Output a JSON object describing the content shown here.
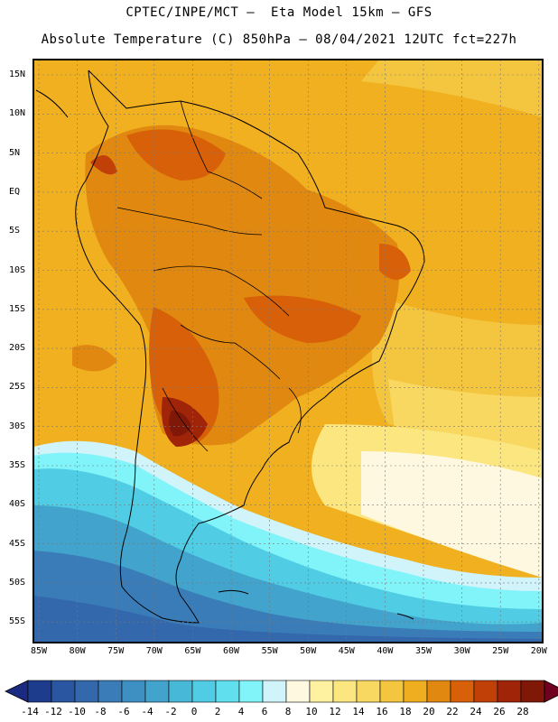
{
  "header": {
    "line1": "CPTEC/INPE/MCT –  Eta Model 15km – GFS",
    "line2": "Absolute Temperature (C) 850hPa – 08/04/2021 12UTC fct=227h"
  },
  "map": {
    "latitude_labels": [
      "15N",
      "10N",
      "5N",
      "EQ",
      "5S",
      "10S",
      "15S",
      "20S",
      "25S",
      "30S",
      "35S",
      "40S",
      "45S",
      "50S",
      "55S"
    ],
    "longitude_labels": [
      "85W",
      "80W",
      "75W",
      "70W",
      "65W",
      "60W",
      "55W",
      "50W",
      "45W",
      "40W",
      "35W",
      "30W",
      "25W",
      "20W"
    ],
    "region": "South America"
  },
  "colorbar": {
    "labels": [
      "-14",
      "-12",
      "-10",
      "-8",
      "-6",
      "-4",
      "-2",
      "0",
      "2",
      "4",
      "6",
      "8",
      "10",
      "12",
      "14",
      "16",
      "18",
      "20",
      "22",
      "24",
      "26",
      "28"
    ],
    "colors": [
      "#1e3c8c",
      "#2a55a0",
      "#3468ac",
      "#3a7cb8",
      "#3e90c2",
      "#42a4cc",
      "#48b8d8",
      "#50cce4",
      "#60e0ee",
      "#80f4f8",
      "#d0f4fa",
      "#fef8e0",
      "#fef2a0",
      "#fce680",
      "#f8d860",
      "#f4c640",
      "#eeae20",
      "#e08810",
      "#d86008",
      "#c04008",
      "#a02408",
      "#801808"
    ],
    "under_color": "#1a2a80",
    "over_color": "#700020"
  }
}
